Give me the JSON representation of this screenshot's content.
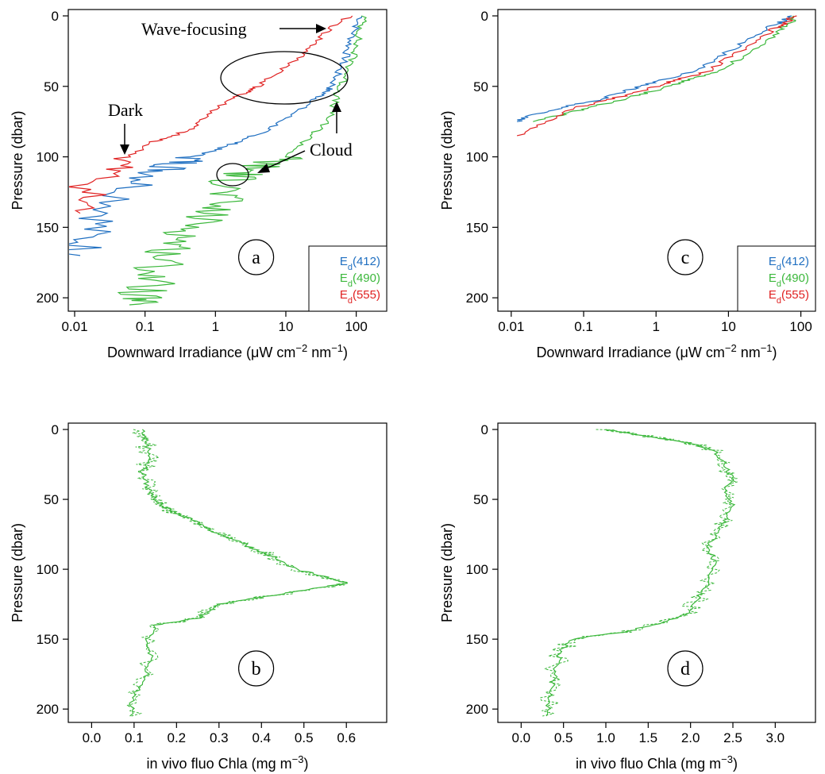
{
  "chart_data": [
    {
      "panel": "a",
      "type": "line",
      "ylabel": "Pressure (dbar)",
      "xlabel_prefix": "Downward Irradiance (μW cm",
      "xlabel_sup1": "−2",
      "xlabel_mid": " nm",
      "xlabel_sup2": "−1",
      "xlabel_suffix": ")",
      "x_scale": "log",
      "xlim": [
        0.01,
        220
      ],
      "ylim": [
        0,
        205
      ],
      "y_reversed": true,
      "x_ticks": [
        0.01,
        0.1,
        1,
        10,
        100
      ],
      "x_tick_labels": [
        "0.01",
        "0.1",
        "1",
        "10",
        "100"
      ],
      "y_ticks": [
        0,
        50,
        100,
        150,
        200
      ],
      "y_tick_labels": [
        "0",
        "50",
        "100",
        "150",
        "200"
      ],
      "legend_position": "bottom-right",
      "series": [
        {
          "name": "412",
          "color": "#1f6fc1",
          "x": [
            120,
            95,
            80,
            70,
            55,
            45,
            35,
            25,
            12,
            6,
            3.5,
            2,
            1,
            0.5,
            0.3,
            0.18,
            0.08,
            0.03,
            0.015,
            0.012
          ],
          "y": [
            0,
            10,
            20,
            30,
            40,
            50,
            55,
            60,
            70,
            80,
            85,
            90,
            95,
            100,
            105,
            110,
            120,
            140,
            155,
            170
          ]
        },
        {
          "name": "490",
          "color": "#3cb83c",
          "x": [
            130,
            115,
            100,
            90,
            75,
            60,
            50,
            45,
            30,
            18,
            10,
            5,
            3,
            2,
            1.5,
            1.2,
            0.8,
            0.5,
            0.3,
            0.2,
            0.15,
            0.12,
            0.08,
            0.06
          ],
          "y": [
            0,
            10,
            20,
            30,
            40,
            50,
            60,
            70,
            80,
            90,
            100,
            105,
            110,
            115,
            120,
            130,
            140,
            150,
            160,
            170,
            180,
            190,
            200,
            205
          ]
        },
        {
          "name": "555",
          "color": "#e02222",
          "x": [
            80,
            40,
            25,
            15,
            8,
            4,
            2.5,
            1.5,
            0.8,
            0.45,
            0.25,
            0.12,
            0.06,
            0.03,
            0.015,
            0.012
          ],
          "y": [
            0,
            10,
            20,
            30,
            40,
            50,
            55,
            60,
            70,
            80,
            85,
            90,
            100,
            110,
            125,
            140
          ]
        }
      ],
      "legend": [
        "E_d(412)",
        "E_d(490)",
        "E_d(555)"
      ],
      "annotations": [
        "Wave-focusing",
        "Dark",
        "Cloud",
        "a"
      ]
    },
    {
      "panel": "c",
      "type": "line",
      "ylabel": "Pressure (dbar)",
      "xlabel_prefix": "Downward Irradiance (μW cm",
      "xlabel_sup1": "−2",
      "xlabel_mid": " nm",
      "xlabel_sup2": "−1",
      "xlabel_suffix": ")",
      "x_scale": "log",
      "xlim": [
        0.008,
        130
      ],
      "ylim": [
        0,
        205
      ],
      "y_reversed": true,
      "x_ticks": [
        0.01,
        0.1,
        1,
        10,
        100
      ],
      "x_tick_labels": [
        "0.01",
        "0.1",
        "1",
        "10",
        "100"
      ],
      "y_ticks": [
        0,
        50,
        100,
        150,
        200
      ],
      "y_tick_labels": [
        "0",
        "50",
        "100",
        "150",
        "200"
      ],
      "legend_position": "bottom-right",
      "series": [
        {
          "name": "412",
          "color": "#1f6fc1",
          "x": [
            75,
            50,
            30,
            15,
            7,
            3,
            1.3,
            0.6,
            0.3,
            0.15,
            0.05,
            0.02,
            0.012
          ],
          "y": [
            0,
            5,
            10,
            20,
            30,
            40,
            45,
            50,
            55,
            60,
            65,
            70,
            75
          ]
        },
        {
          "name": "490",
          "color": "#3cb83c",
          "x": [
            85,
            70,
            50,
            30,
            15,
            7,
            3,
            1.5,
            0.7,
            0.3,
            0.12,
            0.05,
            0.02
          ],
          "y": [
            0,
            5,
            10,
            20,
            30,
            40,
            45,
            50,
            55,
            60,
            65,
            70,
            75
          ]
        },
        {
          "name": "555",
          "color": "#e02222",
          "x": [
            80,
            60,
            40,
            22,
            10,
            5,
            2,
            1,
            0.5,
            0.2,
            0.08,
            0.03,
            0.012
          ],
          "y": [
            0,
            5,
            10,
            20,
            30,
            40,
            45,
            50,
            55,
            60,
            65,
            75,
            85
          ]
        }
      ],
      "legend": [
        "E_d(412)",
        "E_d(490)",
        "E_d(555)"
      ],
      "annotations": [
        "c"
      ]
    },
    {
      "panel": "b",
      "type": "line",
      "ylabel": "Pressure (dbar)",
      "xlabel_prefix": "in vivo fluo Chla (mg m",
      "xlabel_sup1": "−3",
      "xlabel_suffix": ")",
      "x_scale": "linear",
      "xlim": [
        -0.04,
        0.68
      ],
      "ylim": [
        0,
        205
      ],
      "y_reversed": true,
      "x_ticks": [
        0.0,
        0.1,
        0.2,
        0.3,
        0.4,
        0.5,
        0.6
      ],
      "x_tick_labels": [
        "0.0",
        "0.1",
        "0.2",
        "0.3",
        "0.4",
        "0.5",
        "0.6"
      ],
      "y_ticks": [
        0,
        50,
        100,
        150,
        200
      ],
      "y_tick_labels": [
        "0",
        "50",
        "100",
        "150",
        "200"
      ],
      "series": [
        {
          "name": "",
          "color": "#3cb83c",
          "x": [
            0.12,
            0.13,
            0.14,
            0.12,
            0.13,
            0.15,
            0.17,
            0.2,
            0.24,
            0.27,
            0.3,
            0.35,
            0.38,
            0.42,
            0.48,
            0.55,
            0.6,
            0.5,
            0.4,
            0.3,
            0.28,
            0.25,
            0.15,
            0.13,
            0.14,
            0.13,
            0.1,
            0.09
          ],
          "y": [
            0,
            10,
            20,
            30,
            40,
            50,
            55,
            60,
            65,
            70,
            75,
            80,
            85,
            90,
            100,
            105,
            110,
            115,
            120,
            125,
            130,
            135,
            140,
            150,
            160,
            175,
            190,
            205
          ]
        }
      ],
      "annotations": [
        "b"
      ]
    },
    {
      "panel": "d",
      "type": "line",
      "ylabel": "Pressure (dbar)",
      "xlabel_prefix": "in vivo fluo Chla (mg m",
      "xlabel_sup1": "−3",
      "xlabel_suffix": ")",
      "x_scale": "linear",
      "xlim": [
        -0.2,
        3.4
      ],
      "ylim": [
        0,
        205
      ],
      "y_reversed": true,
      "x_ticks": [
        0.0,
        0.5,
        1.0,
        1.5,
        2.0,
        2.5,
        3.0
      ],
      "x_tick_labels": [
        "0.0",
        "0.5",
        "1.0",
        "1.5",
        "2.0",
        "2.5",
        "3.0"
      ],
      "y_ticks": [
        0,
        50,
        100,
        150,
        200
      ],
      "y_tick_labels": [
        "0",
        "50",
        "100",
        "150",
        "200"
      ],
      "series": [
        {
          "name": "",
          "color": "#3cb83c",
          "x": [
            1.0,
            1.3,
            1.6,
            2.0,
            2.3,
            2.4,
            2.5,
            2.4,
            2.5,
            2.4,
            2.3,
            2.2,
            2.3,
            2.2,
            2.1,
            2.0,
            1.7,
            1.2,
            0.6,
            0.45,
            0.4,
            0.35,
            0.3
          ],
          "y": [
            0,
            3,
            6,
            10,
            15,
            25,
            35,
            45,
            55,
            65,
            75,
            85,
            95,
            110,
            120,
            130,
            138,
            145,
            150,
            160,
            175,
            190,
            205
          ]
        }
      ],
      "annotations": [
        "d"
      ]
    }
  ]
}
